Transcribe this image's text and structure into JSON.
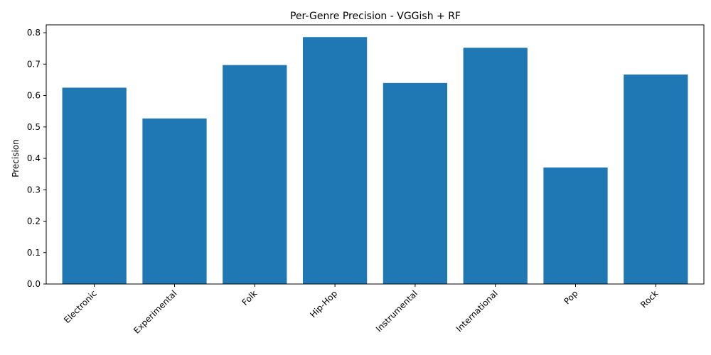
{
  "chart_data": {
    "type": "bar",
    "title": "Per-Genre Precision - VGGish + RF",
    "xlabel": "",
    "ylabel": "Precision",
    "categories": [
      "Electronic",
      "Experimental",
      "Folk",
      "Hip-Hop",
      "Instrumental",
      "International",
      "Pop",
      "Rock"
    ],
    "values": [
      0.625,
      0.527,
      0.697,
      0.786,
      0.64,
      0.752,
      0.371,
      0.667
    ],
    "ylim": [
      0,
      0.825
    ],
    "yticks": [
      "0.0",
      "0.1",
      "0.2",
      "0.3",
      "0.4",
      "0.5",
      "0.6",
      "0.7",
      "0.8"
    ],
    "grid": false,
    "legend": "none",
    "bar_color": "#1f77b4"
  }
}
